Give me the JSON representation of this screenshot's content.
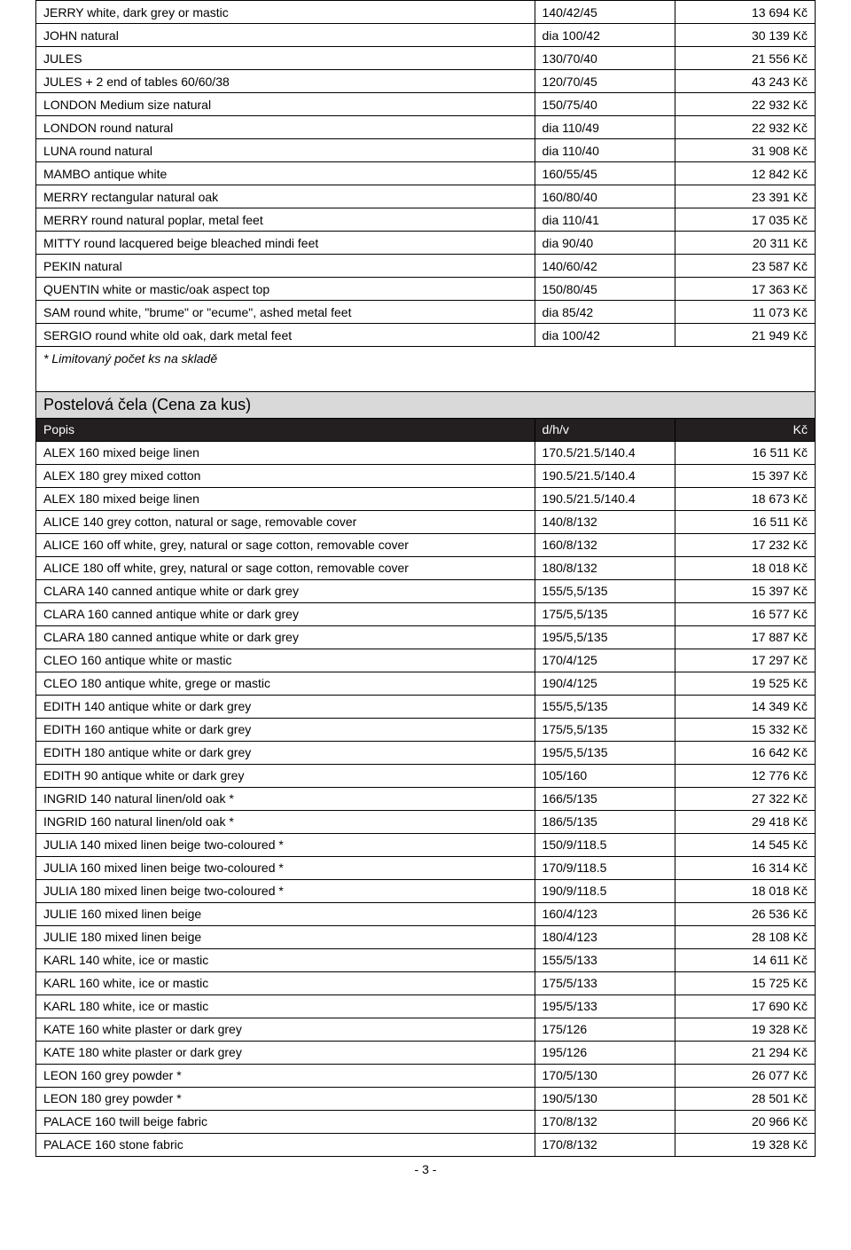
{
  "tables": {
    "top": {
      "rows": [
        {
          "desc": "JERRY white, dark grey or mastic",
          "dim": "140/42/45",
          "price": "13 694 Kč"
        },
        {
          "desc": "JOHN natural",
          "dim": "dia 100/42",
          "price": "30 139 Kč"
        },
        {
          "desc": "JULES",
          "dim": "130/70/40",
          "price": "21 556 Kč"
        },
        {
          "desc": "JULES + 2 end of tables 60/60/38",
          "dim": "120/70/45",
          "price": "43 243 Kč"
        },
        {
          "desc": "LONDON Medium size natural",
          "dim": "150/75/40",
          "price": "22 932 Kč"
        },
        {
          "desc": "LONDON round natural",
          "dim": "dia 110/49",
          "price": "22 932 Kč"
        },
        {
          "desc": "LUNA round natural",
          "dim": "dia 110/40",
          "price": "31 908 Kč"
        },
        {
          "desc": "MAMBO antique white",
          "dim": "160/55/45",
          "price": "12 842 Kč"
        },
        {
          "desc": "MERRY rectangular natural oak",
          "dim": "160/80/40",
          "price": "23 391 Kč"
        },
        {
          "desc": "MERRY round natural poplar, metal feet",
          "dim": "dia 110/41",
          "price": "17 035 Kč"
        },
        {
          "desc": "MITTY round lacquered beige bleached mindi feet",
          "dim": "dia 90/40",
          "price": "20 311 Kč"
        },
        {
          "desc": "PEKIN natural",
          "dim": "140/60/42",
          "price": "23 587 Kč"
        },
        {
          "desc": "QUENTIN white or mastic/oak aspect top",
          "dim": "150/80/45",
          "price": "17 363 Kč"
        },
        {
          "desc": "SAM round white, \"brume\" or \"ecume\", ashed metal feet",
          "dim": "dia 85/42",
          "price": "11 073 Kč"
        },
        {
          "desc": "SERGIO round white old oak, dark metal feet",
          "dim": "dia 100/42",
          "price": "21 949 Kč"
        }
      ],
      "note": "* Limitovaný počet ks na skladě"
    },
    "section2": {
      "title": "Postelová čela (Cena za kus)",
      "header": {
        "desc": "Popis",
        "dim": "d/h/v",
        "price": "Kč"
      },
      "rows": [
        {
          "desc": "ALEX 160 mixed beige linen",
          "dim": "170.5/21.5/140.4",
          "price": "16 511 Kč"
        },
        {
          "desc": "ALEX 180 grey mixed cotton",
          "dim": "190.5/21.5/140.4",
          "price": "15 397 Kč"
        },
        {
          "desc": "ALEX 180 mixed beige linen",
          "dim": "190.5/21.5/140.4",
          "price": "18 673 Kč"
        },
        {
          "desc": "ALICE 140 grey cotton, natural or sage, removable cover",
          "dim": "140/8/132",
          "price": "16 511 Kč"
        },
        {
          "desc": "ALICE 160 off white, grey, natural or sage cotton, removable cover",
          "dim": "160/8/132",
          "price": "17 232 Kč"
        },
        {
          "desc": "ALICE 180 off white, grey, natural or sage cotton, removable cover",
          "dim": "180/8/132",
          "price": "18 018 Kč"
        },
        {
          "desc": "CLARA 140 canned antique white or dark grey",
          "dim": "155/5,5/135",
          "price": "15 397 Kč"
        },
        {
          "desc": "CLARA 160 canned antique white or dark grey",
          "dim": "175/5,5/135",
          "price": "16 577 Kč"
        },
        {
          "desc": "CLARA 180 canned antique white or dark grey",
          "dim": "195/5,5/135",
          "price": "17 887 Kč"
        },
        {
          "desc": "CLEO 160 antique white or mastic",
          "dim": "170/4/125",
          "price": "17 297 Kč"
        },
        {
          "desc": "CLEO 180 antique white, grege or mastic",
          "dim": "190/4/125",
          "price": "19 525 Kč"
        },
        {
          "desc": "EDITH 140 antique white or dark grey",
          "dim": "155/5,5/135",
          "price": "14 349 Kč"
        },
        {
          "desc": "EDITH 160 antique white or dark grey",
          "dim": "175/5,5/135",
          "price": "15 332 Kč"
        },
        {
          "desc": "EDITH 180 antique white or dark grey",
          "dim": "195/5,5/135",
          "price": "16 642 Kč"
        },
        {
          "desc": "EDITH 90 antique white or dark grey",
          "dim": "105/160",
          "price": "12 776 Kč"
        },
        {
          "desc": "INGRID 140 natural linen/old oak *",
          "dim": "166/5/135",
          "price": "27 322 Kč"
        },
        {
          "desc": "INGRID 160 natural linen/old oak *",
          "dim": "186/5/135",
          "price": "29 418 Kč"
        },
        {
          "desc": "JULIA 140 mixed linen beige two-coloured *",
          "dim": "150/9/118.5",
          "price": "14 545 Kč"
        },
        {
          "desc": "JULIA 160 mixed linen beige two-coloured *",
          "dim": "170/9/118.5",
          "price": "16 314 Kč"
        },
        {
          "desc": "JULIA 180 mixed linen beige two-coloured *",
          "dim": "190/9/118.5",
          "price": "18 018 Kč"
        },
        {
          "desc": "JULIE 160 mixed linen beige",
          "dim": "160/4/123",
          "price": "26 536 Kč"
        },
        {
          "desc": "JULIE 180 mixed linen beige",
          "dim": "180/4/123",
          "price": "28 108 Kč"
        },
        {
          "desc": "KARL 140 white, ice or mastic",
          "dim": "155/5/133",
          "price": "14 611 Kč"
        },
        {
          "desc": "KARL 160 white, ice or mastic",
          "dim": "175/5/133",
          "price": "15 725 Kč"
        },
        {
          "desc": "KARL 180 white, ice or mastic",
          "dim": "195/5/133",
          "price": "17 690 Kč"
        },
        {
          "desc": "KATE 160 white plaster or dark grey",
          "dim": "175/126",
          "price": "19 328 Kč"
        },
        {
          "desc": "KATE 180 white plaster or dark grey",
          "dim": "195/126",
          "price": "21 294 Kč"
        },
        {
          "desc": "LEON 160 grey powder *",
          "dim": "170/5/130",
          "price": "26 077 Kč"
        },
        {
          "desc": "LEON 180 grey powder *",
          "dim": "190/5/130",
          "price": "28 501 Kč"
        },
        {
          "desc": "PALACE 160 twill beige fabric",
          "dim": "170/8/132",
          "price": "20 966 Kč"
        },
        {
          "desc": "PALACE 160 stone fabric",
          "dim": "170/8/132",
          "price": "19 328 Kč"
        }
      ]
    }
  },
  "pageNumber": "- 3 -",
  "colors": {
    "headerBg": "#231f20",
    "headerFg": "#ffffff",
    "sectionBg": "#d9d9d9",
    "border": "#000000",
    "bg": "#ffffff"
  }
}
